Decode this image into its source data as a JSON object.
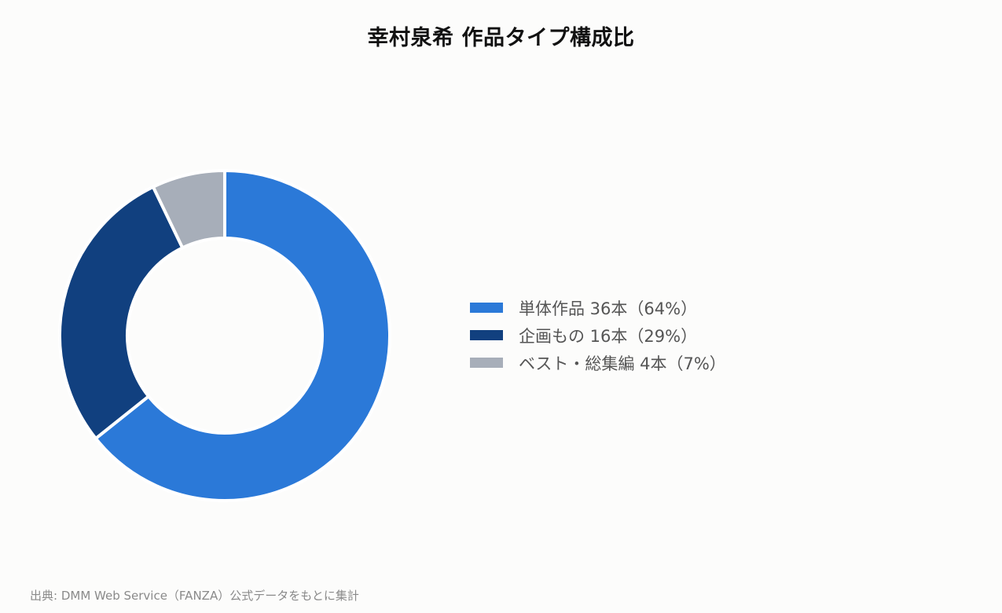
{
  "title": "幸村泉希 作品タイプ構成比",
  "source": "出典: DMM Web Service（FANZA）公式データをもとに集計",
  "chart_data": {
    "type": "pie",
    "subtype": "donut",
    "title": "幸村泉希 作品タイプ構成比",
    "legend_position": "right",
    "categories": [
      "単体作品",
      "企画もの",
      "ベスト・総集編"
    ],
    "values": [
      36,
      16,
      4
    ],
    "percentages": [
      64,
      29,
      7
    ],
    "colors": [
      "#2b79d8",
      "#11407f",
      "#a7aeb9"
    ],
    "legend_labels": [
      "単体作品 36本（64%）",
      "企画もの 16本（29%）",
      "ベスト・総集編 4本（7%）"
    ]
  }
}
